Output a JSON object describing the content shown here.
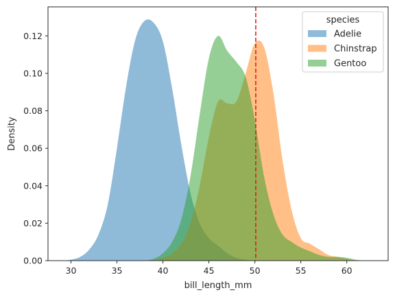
{
  "chart_data": {
    "type": "area",
    "title": "",
    "xlabel": "bill_length_mm",
    "ylabel": "Density",
    "xlim": [
      27.5,
      64.5
    ],
    "ylim": [
      0,
      0.1355
    ],
    "xticks": [
      30,
      35,
      40,
      45,
      50,
      55,
      60
    ],
    "yticks": [
      0.0,
      0.02,
      0.04,
      0.06,
      0.08,
      0.1,
      0.12
    ],
    "ytick_labels": [
      "0.00",
      "0.02",
      "0.04",
      "0.06",
      "0.08",
      "0.10",
      "0.12"
    ],
    "grid": false,
    "legend": {
      "title": "species",
      "position": "top-right"
    },
    "reference_line": {
      "orientation": "vertical",
      "x": 50.1,
      "style": "dashed",
      "color": "#e41a1c"
    },
    "series": [
      {
        "name": "Adelie",
        "color": "#1f77b4",
        "x": [
          29,
          30,
          31,
          32,
          33,
          34,
          35,
          36,
          37,
          38,
          39,
          40,
          41,
          42,
          43,
          44,
          45,
          46,
          47,
          48,
          49,
          50
        ],
        "y": [
          0.0,
          0.0005,
          0.002,
          0.006,
          0.014,
          0.03,
          0.06,
          0.093,
          0.118,
          0.128,
          0.127,
          0.117,
          0.092,
          0.062,
          0.036,
          0.02,
          0.012,
          0.008,
          0.004,
          0.0015,
          0.0005,
          0.0
        ]
      },
      {
        "name": "Chinstrap",
        "color": "#ff7f0e",
        "x": [
          38,
          39,
          40,
          41,
          42,
          43,
          44,
          45,
          46,
          47,
          48,
          49,
          50,
          51,
          52,
          53,
          54,
          55,
          56,
          57,
          58,
          59,
          60,
          61
        ],
        "y": [
          0.0,
          0.0005,
          0.0015,
          0.004,
          0.009,
          0.02,
          0.04,
          0.066,
          0.085,
          0.084,
          0.085,
          0.1,
          0.116,
          0.114,
          0.09,
          0.054,
          0.027,
          0.012,
          0.009,
          0.006,
          0.003,
          0.002,
          0.001,
          0.0
        ]
      },
      {
        "name": "Gentoo",
        "color": "#2ca02c",
        "x": [
          38,
          39,
          40,
          41,
          42,
          43,
          44,
          45,
          46,
          47,
          48,
          49,
          50,
          51,
          52,
          53,
          54,
          55,
          56,
          57,
          58,
          59,
          60,
          61,
          62
        ],
        "y": [
          0.0,
          0.001,
          0.004,
          0.01,
          0.022,
          0.045,
          0.078,
          0.108,
          0.12,
          0.112,
          0.106,
          0.098,
          0.075,
          0.045,
          0.025,
          0.014,
          0.01,
          0.007,
          0.005,
          0.003,
          0.002,
          0.002,
          0.0015,
          0.0005,
          0.0
        ]
      }
    ]
  }
}
